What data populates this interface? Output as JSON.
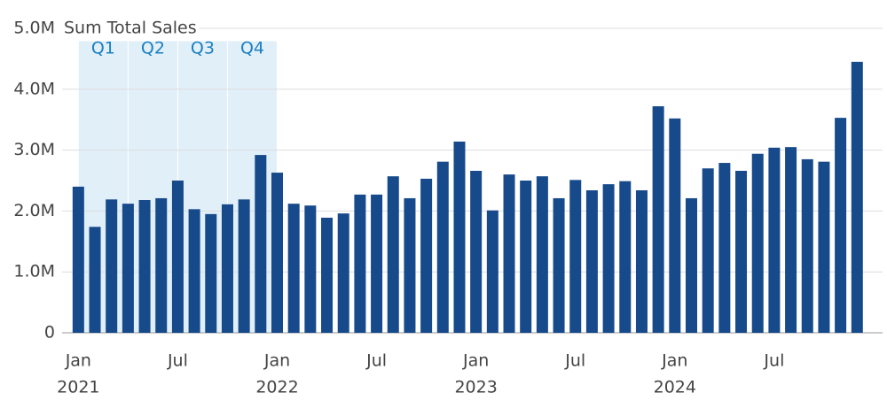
{
  "chart_data": {
    "type": "bar",
    "y_label": "Sum Total Sales",
    "categories": [
      "Jan",
      null,
      null,
      null,
      null,
      null,
      "Jul",
      null,
      null,
      null,
      null,
      null,
      "Jan",
      null,
      null,
      null,
      null,
      null,
      "Jul",
      null,
      null,
      null,
      null,
      null,
      "Jan",
      null,
      null,
      null,
      null,
      null,
      "Jul",
      null,
      null,
      null,
      null,
      null,
      "Jan",
      null,
      null,
      null,
      null,
      null,
      "Jul",
      null,
      null,
      null,
      null,
      null
    ],
    "category_years": [
      "2021",
      null,
      null,
      null,
      null,
      null,
      null,
      null,
      null,
      null,
      null,
      null,
      "2022",
      null,
      null,
      null,
      null,
      null,
      null,
      null,
      null,
      null,
      null,
      null,
      "2023",
      null,
      null,
      null,
      null,
      null,
      null,
      null,
      null,
      null,
      null,
      null,
      "2024",
      null,
      null,
      null,
      null,
      null,
      null,
      null,
      null,
      null,
      null,
      null
    ],
    "values": [
      2400000,
      1740000,
      2190000,
      2120000,
      2180000,
      2210000,
      2500000,
      2030000,
      1950000,
      2110000,
      2190000,
      2920000,
      2630000,
      2120000,
      2090000,
      1890000,
      1960000,
      2270000,
      2270000,
      2570000,
      2210000,
      2530000,
      2810000,
      3140000,
      2660000,
      2010000,
      2600000,
      2500000,
      2570000,
      2210000,
      2510000,
      2340000,
      2440000,
      2490000,
      2340000,
      3720000,
      3520000,
      2210000,
      2700000,
      2790000,
      2660000,
      2940000,
      3040000,
      3050000,
      2850000,
      2810000,
      3530000,
      4450000
    ],
    "color": "#174a8b",
    "ylim": [
      0,
      5000000
    ],
    "yticks": [
      0,
      {
        "value": 1000000,
        "label": "1.0M"
      },
      {
        "value": 2000000,
        "label": "2.0M"
      },
      {
        "value": 3000000,
        "label": "3.0M"
      },
      {
        "value": 4000000,
        "label": "4.0M"
      },
      {
        "value": 5000000,
        "label": "5.0M"
      }
    ],
    "grid": true,
    "quarter_bands": {
      "labels": [
        "Q1",
        "Q2",
        "Q3",
        "Q4"
      ],
      "color": "#e1eff9",
      "label_color": "#1a7fc1"
    }
  }
}
